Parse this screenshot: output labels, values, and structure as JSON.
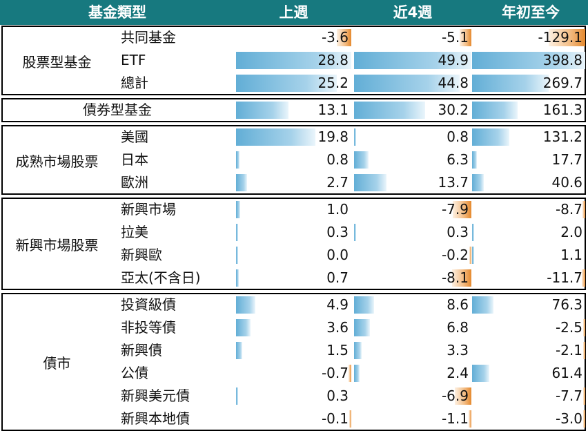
{
  "chart_data": {
    "type": "table",
    "headers": [
      "基金類型",
      "上週",
      "近4週",
      "年初至今"
    ],
    "colors": {
      "header_bg": "#17797f",
      "positive": "#62aed6",
      "negative": "#e5892e"
    },
    "groups": [
      {
        "name": "股票型基金",
        "rows": [
          {
            "label": "共同基金",
            "values": [
              -3.6,
              -5.1,
              -129.1
            ]
          },
          {
            "label": "ETF",
            "values": [
              28.8,
              49.9,
              398.8
            ]
          },
          {
            "label": "總計",
            "values": [
              25.2,
              44.8,
              269.7
            ]
          }
        ]
      },
      {
        "name": "",
        "rows": [
          {
            "label": "債券型基金",
            "values": [
              13.1,
              30.2,
              161.3
            ]
          }
        ]
      },
      {
        "name": "成熟市場股票",
        "rows": [
          {
            "label": "美國",
            "values": [
              19.8,
              0.8,
              131.2
            ]
          },
          {
            "label": "日本",
            "values": [
              0.8,
              6.3,
              17.7
            ]
          },
          {
            "label": "歐洲",
            "values": [
              2.7,
              13.7,
              40.6
            ]
          }
        ]
      },
      {
        "name": "新興市場股票",
        "rows": [
          {
            "label": "新興市場",
            "values": [
              1.0,
              -7.9,
              -8.7
            ]
          },
          {
            "label": "拉美",
            "values": [
              0.3,
              0.3,
              2.0
            ]
          },
          {
            "label": "新興歐",
            "values": [
              0.0,
              -0.2,
              1.1
            ]
          },
          {
            "label": "亞太(不含日)",
            "values": [
              0.7,
              -8.1,
              -11.7
            ]
          }
        ]
      },
      {
        "name": "債市",
        "rows": [
          {
            "label": "投資級債",
            "values": [
              4.9,
              8.6,
              76.3
            ]
          },
          {
            "label": "非投等債",
            "values": [
              3.6,
              6.8,
              -2.5
            ]
          },
          {
            "label": "新興債",
            "values": [
              1.5,
              3.3,
              -2.1
            ]
          },
          {
            "label": "公債",
            "values": [
              -0.7,
              2.4,
              61.4
            ]
          },
          {
            "label": "新興美元債",
            "values": [
              0.3,
              -6.9,
              -7.7
            ]
          },
          {
            "label": "新興本地債",
            "values": [
              -0.1,
              -1.1,
              -3.0
            ]
          }
        ]
      }
    ]
  }
}
